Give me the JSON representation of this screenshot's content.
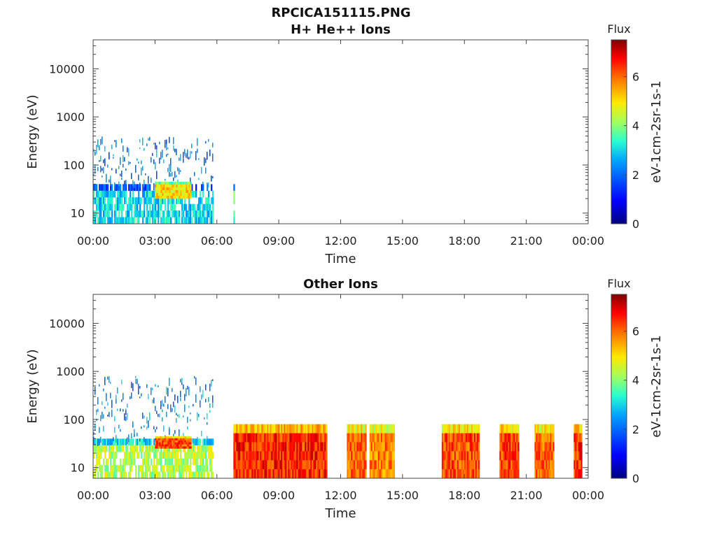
{
  "figure": {
    "title": "RPCICA151115.PNG"
  },
  "chart_data": [
    {
      "type": "heatmap",
      "title": "H+ He++ Ions",
      "xlabel": "Time",
      "ylabel": "Energy (eV)",
      "x_ticks": [
        "00:00",
        "03:00",
        "06:00",
        "09:00",
        "12:00",
        "15:00",
        "18:00",
        "21:00",
        "00:00"
      ],
      "xlim_hours": [
        0,
        24
      ],
      "y_scale": "log",
      "y_ticks": [
        "10",
        "100",
        "1000",
        "10000"
      ],
      "ylim": [
        6,
        40000
      ],
      "colorbar": {
        "title": "Flux",
        "label": "eV-1cm-2sr-1s-1",
        "ticks": [
          "0",
          "2",
          "4",
          "6"
        ],
        "range": [
          0,
          7.5
        ],
        "colormap": "jet"
      },
      "data_blocks": [
        {
          "t_start": 0.0,
          "t_end": 5.8,
          "e_low": 6,
          "e_high": 40,
          "flux": 3.0
        },
        {
          "t_start": 0.0,
          "t_end": 5.8,
          "e_low": 40,
          "e_high": 400,
          "flux": 2.2
        },
        {
          "t_start": 3.0,
          "t_end": 4.7,
          "e_low": 20,
          "e_high": 45,
          "flux": 5.0
        },
        {
          "t_start": 6.8,
          "t_end": 6.85,
          "e_low": 6,
          "e_high": 40,
          "flux": 3.5
        }
      ]
    },
    {
      "type": "heatmap",
      "title": "Other Ions",
      "xlabel": "Time",
      "ylabel": "Energy (eV)",
      "x_ticks": [
        "00:00",
        "03:00",
        "06:00",
        "09:00",
        "12:00",
        "15:00",
        "18:00",
        "21:00",
        "00:00"
      ],
      "xlim_hours": [
        0,
        24
      ],
      "y_scale": "log",
      "y_ticks": [
        "10",
        "100",
        "1000",
        "10000"
      ],
      "ylim": [
        6,
        40000
      ],
      "colorbar": {
        "title": "Flux",
        "label": "eV-1cm-2sr-1s-1",
        "ticks": [
          "0",
          "2",
          "4",
          "6"
        ],
        "range": [
          0,
          7.5
        ],
        "colormap": "jet"
      },
      "data_blocks": [
        {
          "t_start": 0.0,
          "t_end": 5.8,
          "e_low": 6,
          "e_high": 40,
          "flux": 4.3
        },
        {
          "t_start": 0.0,
          "t_end": 5.8,
          "e_low": 40,
          "e_high": 800,
          "flux": 2.4
        },
        {
          "t_start": 3.0,
          "t_end": 4.7,
          "e_low": 25,
          "e_high": 45,
          "flux": 6.2
        },
        {
          "t_start": 6.8,
          "t_end": 11.3,
          "e_low": 6,
          "e_high": 80,
          "flux": 6.5
        },
        {
          "t_start": 12.3,
          "t_end": 13.2,
          "e_low": 6,
          "e_high": 80,
          "flux": 6.0
        },
        {
          "t_start": 13.4,
          "t_end": 14.6,
          "e_low": 6,
          "e_high": 80,
          "flux": 5.8
        },
        {
          "t_start": 16.9,
          "t_end": 18.7,
          "e_low": 6,
          "e_high": 80,
          "flux": 6.2
        },
        {
          "t_start": 19.7,
          "t_end": 20.6,
          "e_low": 6,
          "e_high": 80,
          "flux": 6.3
        },
        {
          "t_start": 21.4,
          "t_end": 22.3,
          "e_low": 6,
          "e_high": 80,
          "flux": 6.0
        },
        {
          "t_start": 23.3,
          "t_end": 23.7,
          "e_low": 6,
          "e_high": 80,
          "flux": 6.4
        }
      ]
    }
  ]
}
